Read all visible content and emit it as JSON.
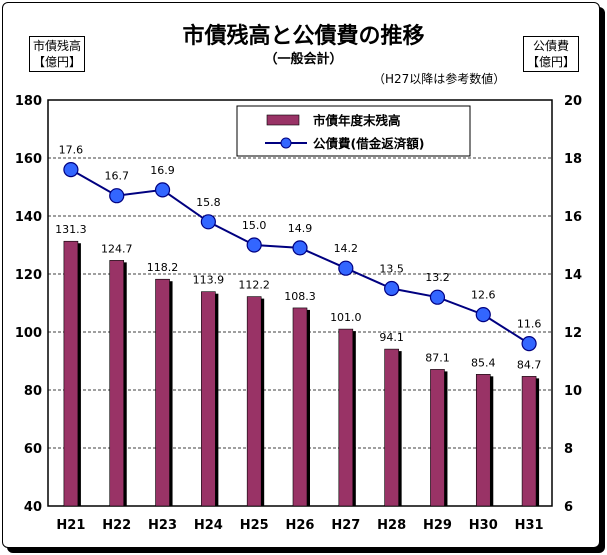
{
  "title": "市債残高と公債費の推移",
  "subtitle": "（一般会計）",
  "note": "（H27以降は参考数値）",
  "left_axis_label_line1": "市債残高",
  "left_axis_label_line2": "【億円】",
  "right_axis_label_line1": "公債費",
  "right_axis_label_line2": "【億円】",
  "colors": {
    "bar": "#993366",
    "line": "#000080",
    "marker": "#3366ff"
  },
  "chart_data": {
    "type": "bar",
    "categories": [
      "H21",
      "H22",
      "H23",
      "H24",
      "H25",
      "H26",
      "H27",
      "H28",
      "H29",
      "H30",
      "H31"
    ],
    "ylim": [
      40,
      180
    ],
    "yticks": [
      40,
      60,
      80,
      100,
      120,
      140,
      160,
      180
    ],
    "y2lim": [
      6,
      20
    ],
    "y2ticks": [
      6,
      8,
      10,
      12,
      14,
      16,
      18,
      20
    ],
    "grid": true,
    "legend_position": "top-center",
    "series": [
      {
        "name": "市債年度末残高",
        "type": "bar",
        "axis": "left",
        "values": [
          131.3,
          124.7,
          118.2,
          113.9,
          112.2,
          108.3,
          101.0,
          94.1,
          87.1,
          85.4,
          84.7
        ],
        "labels": [
          "131.3",
          "124.7",
          "118.2",
          "113.9",
          "112.2",
          "108.3",
          "101.0",
          "94.1",
          "87.1",
          "85.4",
          "84.7"
        ]
      },
      {
        "name": "公債費(借金返済額)",
        "type": "line",
        "axis": "right",
        "values": [
          17.6,
          16.7,
          16.9,
          15.8,
          15.0,
          14.9,
          14.2,
          13.5,
          13.2,
          12.6,
          11.6
        ],
        "labels": [
          "17.6",
          "16.7",
          "16.9",
          "15.8",
          "15.0",
          "14.9",
          "14.2",
          "13.5",
          "13.2",
          "12.6",
          "11.6"
        ]
      }
    ]
  }
}
